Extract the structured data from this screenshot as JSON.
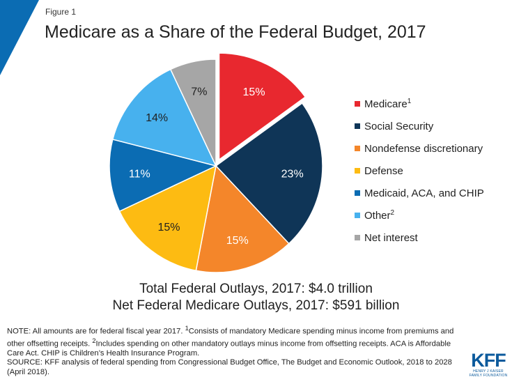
{
  "figure_label": "Figure 1",
  "title": "Medicare as a Share of the Federal Budget, 2017",
  "colors": {
    "corner_accent": "#0b6cb3"
  },
  "chart_data": {
    "type": "pie",
    "title": "Medicare as a Share of the Federal Budget, 2017",
    "slices": [
      {
        "name": "Medicare",
        "sup": "1",
        "value": 15,
        "label": "15%",
        "color": "#e8282f",
        "exploded": true,
        "label_color": "#ffffff"
      },
      {
        "name": "Social Security",
        "sup": "",
        "value": 23,
        "label": "23%",
        "color": "#0f3557",
        "exploded": false,
        "label_color": "#ffffff"
      },
      {
        "name": "Nondefense discretionary",
        "sup": "",
        "value": 15,
        "label": "15%",
        "color": "#f4862a",
        "exploded": false,
        "label_color": "#ffffff"
      },
      {
        "name": "Defense",
        "sup": "",
        "value": 15,
        "label": "15%",
        "color": "#fdbb12",
        "exploded": false,
        "label_color": "#1f1f1f"
      },
      {
        "name": "Medicaid, ACA, and CHIP",
        "sup": "",
        "value": 11,
        "label": "11%",
        "color": "#0b6cb3",
        "exploded": false,
        "label_color": "#ffffff"
      },
      {
        "name": "Other",
        "sup": "2",
        "value": 14,
        "label": "14%",
        "color": "#47b1ee",
        "exploded": false,
        "label_color": "#1f1f1f"
      },
      {
        "name": "Net interest",
        "sup": "",
        "value": 7,
        "label": "7%",
        "color": "#a6a6a6",
        "exploded": false,
        "label_color": "#1f1f1f"
      }
    ],
    "legend_position": "right"
  },
  "totals": {
    "line1": "Total Federal Outlays, 2017: $4.0 trillion",
    "line2": "Net Federal Medicare Outlays, 2017: $591 billion"
  },
  "note": {
    "p1_a": "NOTE: All amounts are for federal fiscal year 2017. ",
    "p1_sup1": "1",
    "p1_b": "Consists of mandatory Medicare spending minus income from premiums and other offsetting receipts. ",
    "p1_sup2": "2",
    "p1_c": "Includes spending on other mandatory outlays minus income from offsetting receipts. ACA is Affordable Care Act. CHIP is Children’s Health Insurance Program.",
    "p2": "SOURCE: KFF analysis of federal spending from Congressional Budget Office, The Budget and Economic Outlook, 2018 to 2028 (April 2018)."
  },
  "logo": {
    "main": "KFF",
    "sub1": "HENRY J KAISER",
    "sub2": "FAMILY FOUNDATION"
  }
}
